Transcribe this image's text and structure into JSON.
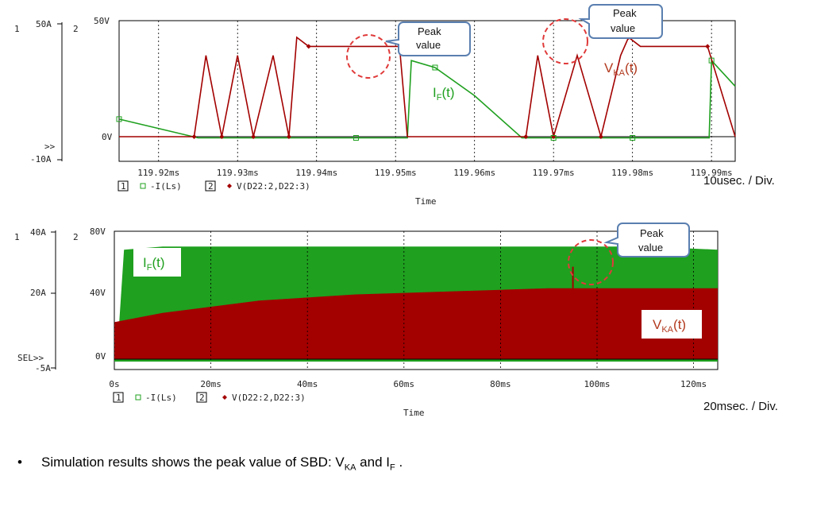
{
  "colors": {
    "trace_v": "#a30000",
    "trace_i": "#1fa01f",
    "axis": "#000000",
    "callout_border": "#5a7fb0",
    "callout_circle": "#e03a3a"
  },
  "top_chart": {
    "panel_left_ids": [
      "1",
      "2"
    ],
    "left_axis_ticks": [
      {
        "label": "50A",
        "value": 50
      },
      {
        "label": ">>",
        "value": 0
      },
      {
        "label": "-10A",
        "value": -10
      }
    ],
    "right_axis_ticks": [
      {
        "label": "50V",
        "value": 50
      },
      {
        "label": "0V",
        "value": 0
      }
    ],
    "x_ticks": [
      "119.92ms",
      "119.93ms",
      "119.94ms",
      "119.95ms",
      "119.96ms",
      "119.97ms",
      "119.98ms",
      "119.99ms"
    ],
    "x_label": "Time",
    "legend": [
      {
        "id": "1",
        "name": "-I(Ls)",
        "color": "green"
      },
      {
        "id": "2",
        "name": "V(D22:2,D22:3)",
        "color": "red"
      }
    ],
    "div_label": "10usec. / Div.",
    "callouts": [
      {
        "text1": "Peak",
        "text2": "value"
      },
      {
        "text1": "Peak",
        "text2": "value"
      }
    ],
    "trace_labels": [
      {
        "main": "I",
        "sub": "F",
        "tail": "(t)"
      },
      {
        "main": "V",
        "sub": "KA",
        "tail": "(t)"
      }
    ]
  },
  "bottom_chart": {
    "panel_left_ids": [
      "1",
      "2"
    ],
    "left_axis_ticks": [
      {
        "label": "40A",
        "value": 40
      },
      {
        "label": "20A",
        "value": 20
      },
      {
        "label": "SEL>>",
        "value": 0
      },
      {
        "label": "-5A",
        "value": -5
      }
    ],
    "right_axis_ticks": [
      {
        "label": "80V",
        "value": 80
      },
      {
        "label": "40V",
        "value": 40
      },
      {
        "label": "0V",
        "value": 0
      }
    ],
    "x_ticks": [
      "0s",
      "20ms",
      "40ms",
      "60ms",
      "80ms",
      "100ms",
      "120ms"
    ],
    "x_label": "Time",
    "legend": [
      {
        "id": "1",
        "name": "-I(Ls)",
        "color": "green"
      },
      {
        "id": "2",
        "name": "V(D22:2,D22:3)",
        "color": "red"
      }
    ],
    "div_label": "20msec. / Div.",
    "callouts": [
      {
        "text1": "Peak",
        "text2": "value"
      }
    ],
    "trace_labels": [
      {
        "main": "I",
        "sub": "F",
        "tail": "(t)"
      },
      {
        "main": "V",
        "sub": "KA",
        "tail": "(t)"
      }
    ]
  },
  "chart_data": [
    {
      "type": "line",
      "x_unit": "ms",
      "xlim": [
        119.915,
        119.993
      ],
      "y_left_ylim": [
        -10,
        50
      ],
      "y_right_ylim": [
        0,
        50
      ],
      "series": [
        {
          "name": "-I(Ls)",
          "axis": "left",
          "x": [
            119.915,
            119.925,
            119.935,
            119.945,
            119.9515,
            119.952,
            119.955,
            119.96,
            119.966,
            119.97,
            119.978,
            119.9795,
            119.98,
            119.985,
            119.9897,
            119.99,
            119.993
          ],
          "values": [
            8,
            0,
            0,
            0,
            0,
            33,
            30,
            18,
            0,
            0,
            0,
            0,
            0,
            0,
            0,
            33,
            22
          ]
        },
        {
          "name": "V(D22:2,D22:3)",
          "axis": "right",
          "x": [
            119.915,
            119.9245,
            119.926,
            119.928,
            119.93,
            119.932,
            119.9345,
            119.9365,
            119.9375,
            119.939,
            119.9415,
            119.9505,
            119.9515,
            119.9665,
            119.968,
            119.97,
            119.973,
            119.976,
            119.9785,
            119.9795,
            119.981,
            119.9895,
            119.993
          ],
          "values": [
            0,
            0,
            36,
            0,
            36,
            0,
            36,
            0,
            44,
            40,
            40,
            40,
            0,
            0,
            36,
            0,
            36,
            0,
            36,
            44,
            40,
            40,
            0
          ]
        }
      ]
    },
    {
      "type": "area",
      "x_unit": "ms",
      "xlim": [
        0,
        125
      ],
      "y_left_ylim": [
        -5,
        40
      ],
      "y_right_ylim": [
        0,
        80
      ],
      "series": [
        {
          "name": "-I(Ls)",
          "axis": "left",
          "x": [
            0,
            1,
            2,
            10,
            30,
            50,
            70,
            90,
            100,
            110,
            125
          ],
          "values": [
            0,
            10,
            34,
            35,
            35,
            35,
            35,
            35,
            35,
            35,
            34
          ]
        },
        {
          "name": "V(D22:2,D22:3)",
          "axis": "right",
          "x": [
            0,
            10,
            20,
            30,
            40,
            50,
            60,
            70,
            80,
            90,
            100,
            110,
            125
          ],
          "values": [
            22,
            28,
            32,
            36,
            38,
            40,
            41,
            42,
            43,
            44,
            44,
            44,
            44
          ]
        }
      ]
    }
  ],
  "bullet": {
    "symbol": "•",
    "text1": "Simulation results shows the peak value of SBD: V",
    "sub1": "KA",
    "text2": " and I",
    "sub2": "F",
    "text3": " ."
  }
}
